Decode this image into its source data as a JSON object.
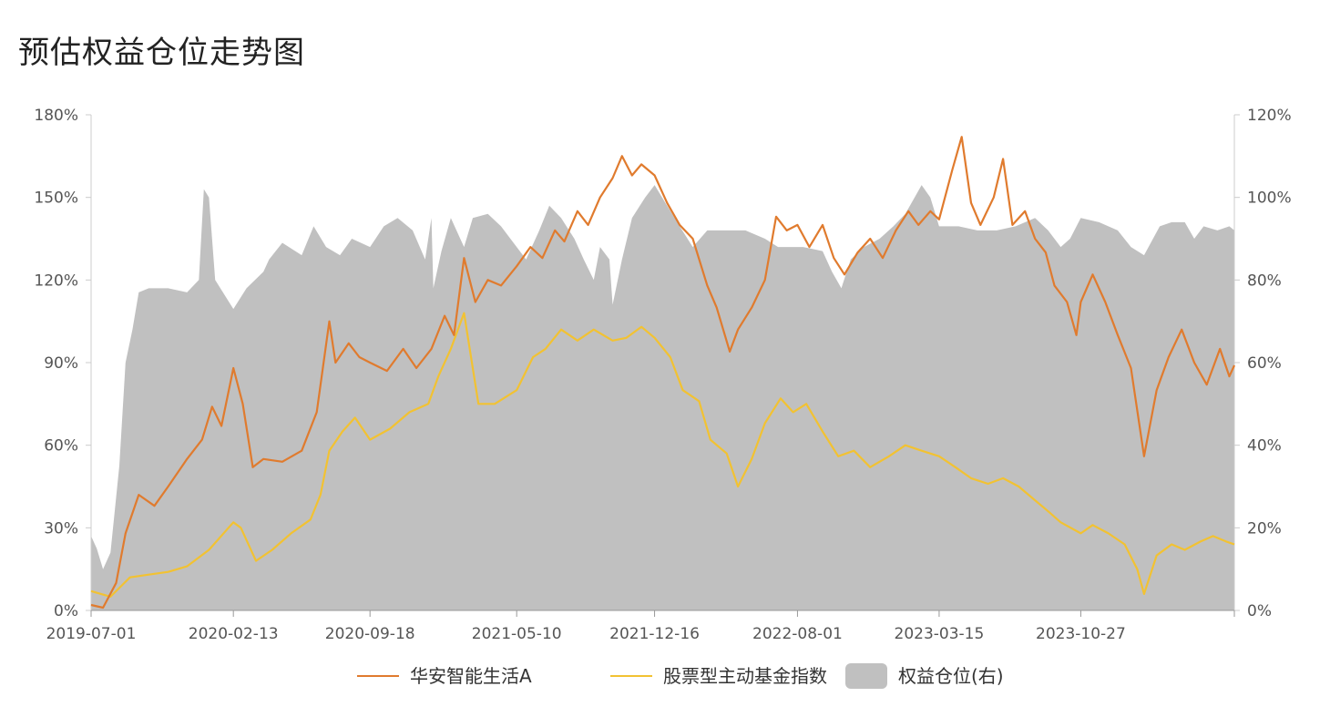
{
  "title": "预估权益仓位走势图",
  "colors": {
    "fund": "#E07B2E",
    "index": "#F2C232",
    "position": "#C0C0C0",
    "axis": "#CCCCCC",
    "text": "#555555"
  },
  "chart_data": {
    "type": "line",
    "title": "预估权益仓位走势图",
    "x_ticks": [
      "2019-07-01",
      "2020-02-13",
      "2020-09-18",
      "2021-05-10",
      "2021-12-16",
      "2022-08-01",
      "2023-03-15",
      "2023-10-27"
    ],
    "x_range": [
      "2019-07-01",
      "2024-06-28"
    ],
    "y_left": {
      "min": 0,
      "max": 180,
      "ticks": [
        0,
        30,
        60,
        90,
        120,
        150,
        180
      ],
      "unit": "%"
    },
    "y_right": {
      "min": 0,
      "max": 120,
      "ticks": [
        0,
        20,
        40,
        60,
        80,
        100,
        120
      ],
      "unit": "%"
    },
    "legend": {
      "placement": "bottom",
      "items": [
        "华安智能生活A",
        "股票型主动基金指数",
        "权益仓位(右)"
      ]
    },
    "series": [
      {
        "name": "华安智能生活A",
        "type": "line",
        "axis": "left",
        "points": [
          [
            "2019-07-01",
            2
          ],
          [
            "2019-07-20",
            1
          ],
          [
            "2019-08-10",
            10
          ],
          [
            "2019-08-25",
            28
          ],
          [
            "2019-09-15",
            42
          ],
          [
            "2019-10-10",
            38
          ],
          [
            "2019-11-01",
            45
          ],
          [
            "2019-12-01",
            55
          ],
          [
            "2019-12-25",
            62
          ],
          [
            "2020-01-10",
            74
          ],
          [
            "2020-01-25",
            67
          ],
          [
            "2020-02-13",
            88
          ],
          [
            "2020-02-28",
            75
          ],
          [
            "2020-03-15",
            52
          ],
          [
            "2020-04-01",
            55
          ],
          [
            "2020-05-01",
            54
          ],
          [
            "2020-06-01",
            58
          ],
          [
            "2020-06-25",
            72
          ],
          [
            "2020-07-15",
            105
          ],
          [
            "2020-07-25",
            90
          ],
          [
            "2020-08-15",
            97
          ],
          [
            "2020-09-01",
            92
          ],
          [
            "2020-09-18",
            90
          ],
          [
            "2020-10-15",
            87
          ],
          [
            "2020-11-10",
            95
          ],
          [
            "2020-12-01",
            88
          ],
          [
            "2020-12-25",
            95
          ],
          [
            "2021-01-15",
            107
          ],
          [
            "2021-01-30",
            100
          ],
          [
            "2021-02-15",
            128
          ],
          [
            "2021-03-05",
            112
          ],
          [
            "2021-03-25",
            120
          ],
          [
            "2021-04-15",
            118
          ],
          [
            "2021-05-10",
            125
          ],
          [
            "2021-06-01",
            132
          ],
          [
            "2021-06-20",
            128
          ],
          [
            "2021-07-10",
            138
          ],
          [
            "2021-07-25",
            134
          ],
          [
            "2021-08-15",
            145
          ],
          [
            "2021-09-01",
            140
          ],
          [
            "2021-09-20",
            150
          ],
          [
            "2021-10-10",
            157
          ],
          [
            "2021-10-25",
            165
          ],
          [
            "2021-11-10",
            158
          ],
          [
            "2021-11-25",
            162
          ],
          [
            "2021-12-16",
            158
          ],
          [
            "2022-01-05",
            148
          ],
          [
            "2022-01-25",
            140
          ],
          [
            "2022-02-15",
            135
          ],
          [
            "2022-03-10",
            118
          ],
          [
            "2022-03-25",
            110
          ],
          [
            "2022-04-15",
            94
          ],
          [
            "2022-04-28",
            102
          ],
          [
            "2022-05-20",
            110
          ],
          [
            "2022-06-10",
            120
          ],
          [
            "2022-06-28",
            143
          ],
          [
            "2022-07-15",
            138
          ],
          [
            "2022-08-01",
            140
          ],
          [
            "2022-08-20",
            132
          ],
          [
            "2022-09-10",
            140
          ],
          [
            "2022-09-28",
            128
          ],
          [
            "2022-10-15",
            122
          ],
          [
            "2022-11-05",
            130
          ],
          [
            "2022-11-25",
            135
          ],
          [
            "2022-12-15",
            128
          ],
          [
            "2023-01-05",
            138
          ],
          [
            "2023-01-25",
            145
          ],
          [
            "2023-02-10",
            140
          ],
          [
            "2023-03-01",
            145
          ],
          [
            "2023-03-15",
            142
          ],
          [
            "2023-04-05",
            160
          ],
          [
            "2023-04-20",
            172
          ],
          [
            "2023-05-05",
            148
          ],
          [
            "2023-05-20",
            140
          ],
          [
            "2023-06-10",
            150
          ],
          [
            "2023-06-25",
            164
          ],
          [
            "2023-07-10",
            140
          ],
          [
            "2023-07-30",
            145
          ],
          [
            "2023-08-15",
            135
          ],
          [
            "2023-09-01",
            130
          ],
          [
            "2023-09-15",
            118
          ],
          [
            "2023-10-05",
            112
          ],
          [
            "2023-10-20",
            100
          ],
          [
            "2023-10-27",
            112
          ],
          [
            "2023-11-15",
            122
          ],
          [
            "2023-12-05",
            112
          ],
          [
            "2023-12-25",
            100
          ],
          [
            "2024-01-15",
            88
          ],
          [
            "2024-02-05",
            56
          ],
          [
            "2024-02-25",
            80
          ],
          [
            "2024-03-15",
            92
          ],
          [
            "2024-04-05",
            102
          ],
          [
            "2024-04-25",
            90
          ],
          [
            "2024-05-15",
            82
          ],
          [
            "2024-06-05",
            95
          ],
          [
            "2024-06-20",
            85
          ],
          [
            "2024-06-28",
            89
          ]
        ]
      },
      {
        "name": "股票型主动基金指数",
        "type": "line",
        "axis": "left",
        "points": [
          [
            "2019-07-01",
            7
          ],
          [
            "2019-08-01",
            5
          ],
          [
            "2019-09-01",
            12
          ],
          [
            "2019-10-01",
            13
          ],
          [
            "2019-11-01",
            14
          ],
          [
            "2019-12-01",
            16
          ],
          [
            "2020-01-05",
            22
          ],
          [
            "2020-02-13",
            32
          ],
          [
            "2020-02-25",
            30
          ],
          [
            "2020-03-20",
            18
          ],
          [
            "2020-04-15",
            22
          ],
          [
            "2020-05-15",
            28
          ],
          [
            "2020-06-15",
            33
          ],
          [
            "2020-07-01",
            42
          ],
          [
            "2020-07-15",
            58
          ],
          [
            "2020-08-05",
            65
          ],
          [
            "2020-08-25",
            70
          ],
          [
            "2020-09-18",
            62
          ],
          [
            "2020-10-20",
            66
          ],
          [
            "2020-11-20",
            72
          ],
          [
            "2020-12-20",
            75
          ],
          [
            "2021-01-05",
            85
          ],
          [
            "2021-01-25",
            95
          ],
          [
            "2021-02-15",
            108
          ],
          [
            "2021-03-10",
            75
          ],
          [
            "2021-04-05",
            75
          ],
          [
            "2021-05-10",
            80
          ],
          [
            "2021-06-05",
            92
          ],
          [
            "2021-06-25",
            95
          ],
          [
            "2021-07-20",
            102
          ],
          [
            "2021-08-15",
            98
          ],
          [
            "2021-09-10",
            102
          ],
          [
            "2021-10-10",
            98
          ],
          [
            "2021-11-01",
            99
          ],
          [
            "2021-11-25",
            103
          ],
          [
            "2021-12-16",
            99
          ],
          [
            "2022-01-10",
            92
          ],
          [
            "2022-01-30",
            80
          ],
          [
            "2022-02-25",
            76
          ],
          [
            "2022-03-15",
            62
          ],
          [
            "2022-04-10",
            57
          ],
          [
            "2022-04-28",
            45
          ],
          [
            "2022-05-20",
            55
          ],
          [
            "2022-06-10",
            68
          ],
          [
            "2022-07-05",
            77
          ],
          [
            "2022-07-25",
            72
          ],
          [
            "2022-08-15",
            75
          ],
          [
            "2022-09-10",
            65
          ],
          [
            "2022-10-05",
            56
          ],
          [
            "2022-10-30",
            58
          ],
          [
            "2022-11-25",
            52
          ],
          [
            "2022-12-25",
            56
          ],
          [
            "2023-01-20",
            60
          ],
          [
            "2023-02-15",
            58
          ],
          [
            "2023-03-15",
            56
          ],
          [
            "2023-04-10",
            52
          ],
          [
            "2023-05-05",
            48
          ],
          [
            "2023-06-01",
            46
          ],
          [
            "2023-06-25",
            48
          ],
          [
            "2023-07-20",
            45
          ],
          [
            "2023-08-15",
            40
          ],
          [
            "2023-09-05",
            36
          ],
          [
            "2023-09-25",
            32
          ],
          [
            "2023-10-27",
            28
          ],
          [
            "2023-11-15",
            31
          ],
          [
            "2023-12-10",
            28
          ],
          [
            "2024-01-05",
            24
          ],
          [
            "2024-01-25",
            15
          ],
          [
            "2024-02-05",
            6
          ],
          [
            "2024-02-25",
            20
          ],
          [
            "2024-03-20",
            24
          ],
          [
            "2024-04-10",
            22
          ],
          [
            "2024-05-05",
            25
          ],
          [
            "2024-05-25",
            27
          ],
          [
            "2024-06-15",
            25
          ],
          [
            "2024-06-28",
            24
          ]
        ]
      },
      {
        "name": "权益仓位(右)",
        "type": "area",
        "axis": "right",
        "points": [
          [
            "2019-07-01",
            18
          ],
          [
            "2019-07-10",
            15
          ],
          [
            "2019-07-20",
            10
          ],
          [
            "2019-08-01",
            14
          ],
          [
            "2019-08-15",
            35
          ],
          [
            "2019-08-25",
            60
          ],
          [
            "2019-09-05",
            68
          ],
          [
            "2019-09-15",
            77
          ],
          [
            "2019-10-01",
            78
          ],
          [
            "2019-11-01",
            78
          ],
          [
            "2019-12-01",
            77
          ],
          [
            "2019-12-20",
            80
          ],
          [
            "2019-12-28",
            102
          ],
          [
            "2020-01-05",
            100
          ],
          [
            "2020-01-15",
            80
          ],
          [
            "2020-02-13",
            73
          ],
          [
            "2020-03-05",
            78
          ],
          [
            "2020-04-01",
            82
          ],
          [
            "2020-04-10",
            85
          ],
          [
            "2020-05-01",
            89
          ],
          [
            "2020-06-01",
            86
          ],
          [
            "2020-06-20",
            93
          ],
          [
            "2020-07-10",
            88
          ],
          [
            "2020-08-01",
            86
          ],
          [
            "2020-08-20",
            90
          ],
          [
            "2020-09-18",
            88
          ],
          [
            "2020-10-10",
            93
          ],
          [
            "2020-11-01",
            95
          ],
          [
            "2020-11-25",
            92
          ],
          [
            "2020-12-15",
            85
          ],
          [
            "2020-12-25",
            95
          ],
          [
            "2020-12-28",
            78
          ],
          [
            "2021-01-10",
            87
          ],
          [
            "2021-01-25",
            95
          ],
          [
            "2021-02-15",
            88
          ],
          [
            "2021-03-01",
            95
          ],
          [
            "2021-03-25",
            96
          ],
          [
            "2021-04-15",
            93
          ],
          [
            "2021-05-10",
            88
          ],
          [
            "2021-05-25",
            85
          ],
          [
            "2021-06-15",
            92
          ],
          [
            "2021-07-01",
            98
          ],
          [
            "2021-07-20",
            95
          ],
          [
            "2021-08-10",
            90
          ],
          [
            "2021-08-25",
            85
          ],
          [
            "2021-09-10",
            80
          ],
          [
            "2021-09-20",
            88
          ],
          [
            "2021-10-05",
            85
          ],
          [
            "2021-10-10",
            74
          ],
          [
            "2021-10-25",
            85
          ],
          [
            "2021-11-10",
            95
          ],
          [
            "2021-12-01",
            100
          ],
          [
            "2021-12-16",
            103
          ],
          [
            "2022-01-05",
            98
          ],
          [
            "2022-01-25",
            93
          ],
          [
            "2022-02-15",
            88
          ],
          [
            "2022-03-10",
            92
          ],
          [
            "2022-04-10",
            92
          ],
          [
            "2022-05-10",
            92
          ],
          [
            "2022-06-10",
            90
          ],
          [
            "2022-07-01",
            88
          ],
          [
            "2022-07-20",
            88
          ],
          [
            "2022-08-10",
            88
          ],
          [
            "2022-09-10",
            87
          ],
          [
            "2022-09-25",
            82
          ],
          [
            "2022-10-10",
            78
          ],
          [
            "2022-10-25",
            85
          ],
          [
            "2022-11-15",
            88
          ],
          [
            "2022-12-10",
            90
          ],
          [
            "2023-01-01",
            93
          ],
          [
            "2023-01-20",
            96
          ],
          [
            "2023-02-15",
            103
          ],
          [
            "2023-03-01",
            100
          ],
          [
            "2023-03-15",
            93
          ],
          [
            "2023-04-15",
            93
          ],
          [
            "2023-05-15",
            92
          ],
          [
            "2023-06-15",
            92
          ],
          [
            "2023-07-15",
            93
          ],
          [
            "2023-08-15",
            95
          ],
          [
            "2023-09-05",
            92
          ],
          [
            "2023-09-25",
            88
          ],
          [
            "2023-10-10",
            90
          ],
          [
            "2023-10-27",
            95
          ],
          [
            "2023-11-25",
            94
          ],
          [
            "2023-12-25",
            92
          ],
          [
            "2024-01-15",
            88
          ],
          [
            "2024-02-05",
            86
          ],
          [
            "2024-03-01",
            93
          ],
          [
            "2024-03-20",
            94
          ],
          [
            "2024-04-10",
            94
          ],
          [
            "2024-04-25",
            90
          ],
          [
            "2024-05-10",
            93
          ],
          [
            "2024-06-01",
            92
          ],
          [
            "2024-06-20",
            93
          ],
          [
            "2024-06-28",
            92
          ]
        ]
      }
    ]
  }
}
